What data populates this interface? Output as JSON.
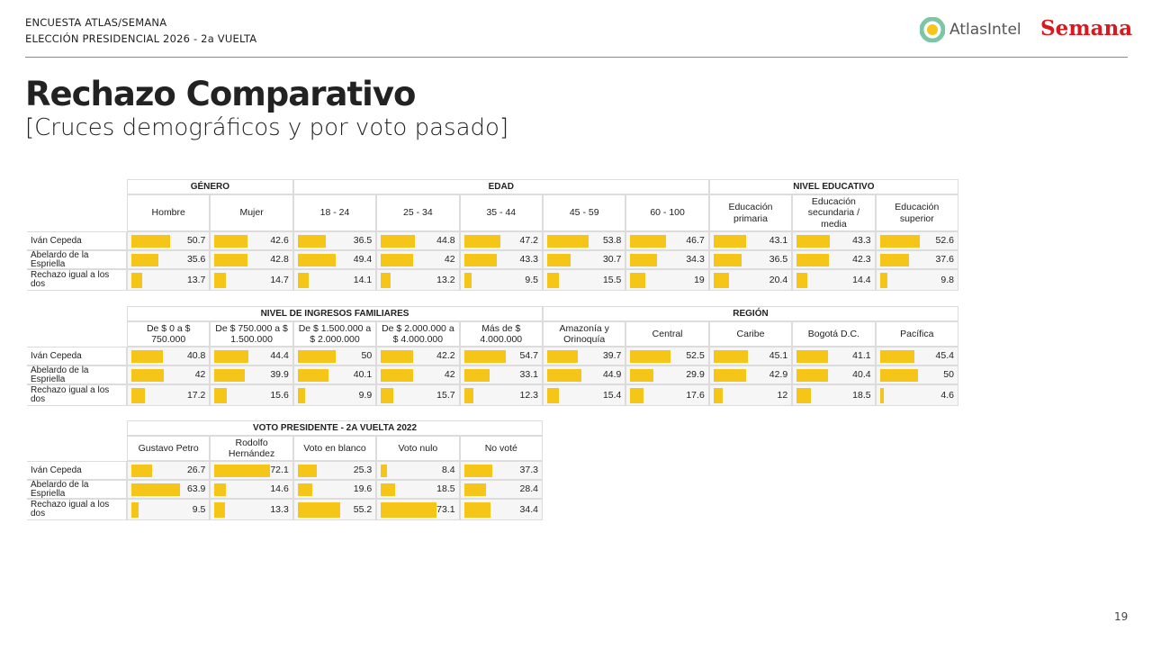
{
  "header": {
    "line1": "ENCUESTA ATLAS/SEMANA",
    "line2": "ELECCIÓN PRESIDENCIAL 2026 - 2a VUELTA",
    "logo1": "AtlasIntel",
    "logo2": "Semana"
  },
  "title": "Rechazo Comparativo",
  "subtitle": "[Cruces demográficos y por voto pasado]",
  "row_labels": [
    "Iván Cepeda",
    "Abelardo de la Espriella",
    "Rechazo igual a los dos"
  ],
  "tables": [
    {
      "groups": [
        {
          "label": "GÉNERO",
          "columns": [
            "Hombre",
            "Mujer"
          ]
        },
        {
          "label": "EDAD",
          "columns": [
            "18 - 24",
            "25 - 34",
            "35 - 44",
            "45 - 59",
            "60 - 100"
          ]
        },
        {
          "label": "NIVEL EDUCATIVO",
          "columns": [
            "Educación primaria",
            "Educación secundaria / media",
            "Educación superior"
          ]
        }
      ],
      "rows": [
        [
          50.7,
          42.6,
          36.5,
          44.8,
          47.2,
          53.8,
          46.7,
          43.1,
          43.3,
          52.6
        ],
        [
          35.6,
          42.8,
          49.4,
          42,
          43.3,
          30.7,
          34.3,
          36.5,
          42.3,
          37.6
        ],
        [
          13.7,
          14.7,
          14.1,
          13.2,
          9.5,
          15.5,
          19,
          20.4,
          14.4,
          9.8
        ]
      ]
    },
    {
      "groups": [
        {
          "label": "NIVEL DE INGRESOS FAMILIARES",
          "columns": [
            "De $ 0 a $ 750.000",
            "De $ 750.000 a $ 1.500.000",
            "De $ 1.500.000 a $ 2.000.000",
            "De $ 2.000.000 a $ 4.000.000",
            "Más de $ 4.000.000"
          ]
        },
        {
          "label": "REGIÓN",
          "columns": [
            "Amazonía y Orinoquía",
            "Central",
            "Caribe",
            "Bogotá D.C.",
            "Pacífica"
          ]
        }
      ],
      "rows": [
        [
          40.8,
          44.4,
          50,
          42.2,
          54.7,
          39.7,
          52.5,
          45.1,
          41.1,
          45.4
        ],
        [
          42,
          39.9,
          40.1,
          42,
          33.1,
          44.9,
          29.9,
          42.9,
          40.4,
          50
        ],
        [
          17.2,
          15.6,
          9.9,
          15.7,
          12.3,
          15.4,
          17.6,
          12,
          18.5,
          4.6
        ]
      ]
    },
    {
      "groups": [
        {
          "label": "VOTO PRESIDENTE - 2A VUELTA 2022",
          "columns": [
            "Gustavo Petro",
            "Rodolfo Hernández",
            "Voto en blanco",
            "Voto nulo",
            "No voté"
          ]
        }
      ],
      "rows": [
        [
          26.7,
          72.1,
          25.3,
          8.4,
          37.3
        ],
        [
          63.9,
          14.6,
          19.6,
          18.5,
          28.4
        ],
        [
          9.5,
          13.3,
          55.2,
          73.1,
          34.4
        ]
      ]
    }
  ],
  "page_number": "19"
}
